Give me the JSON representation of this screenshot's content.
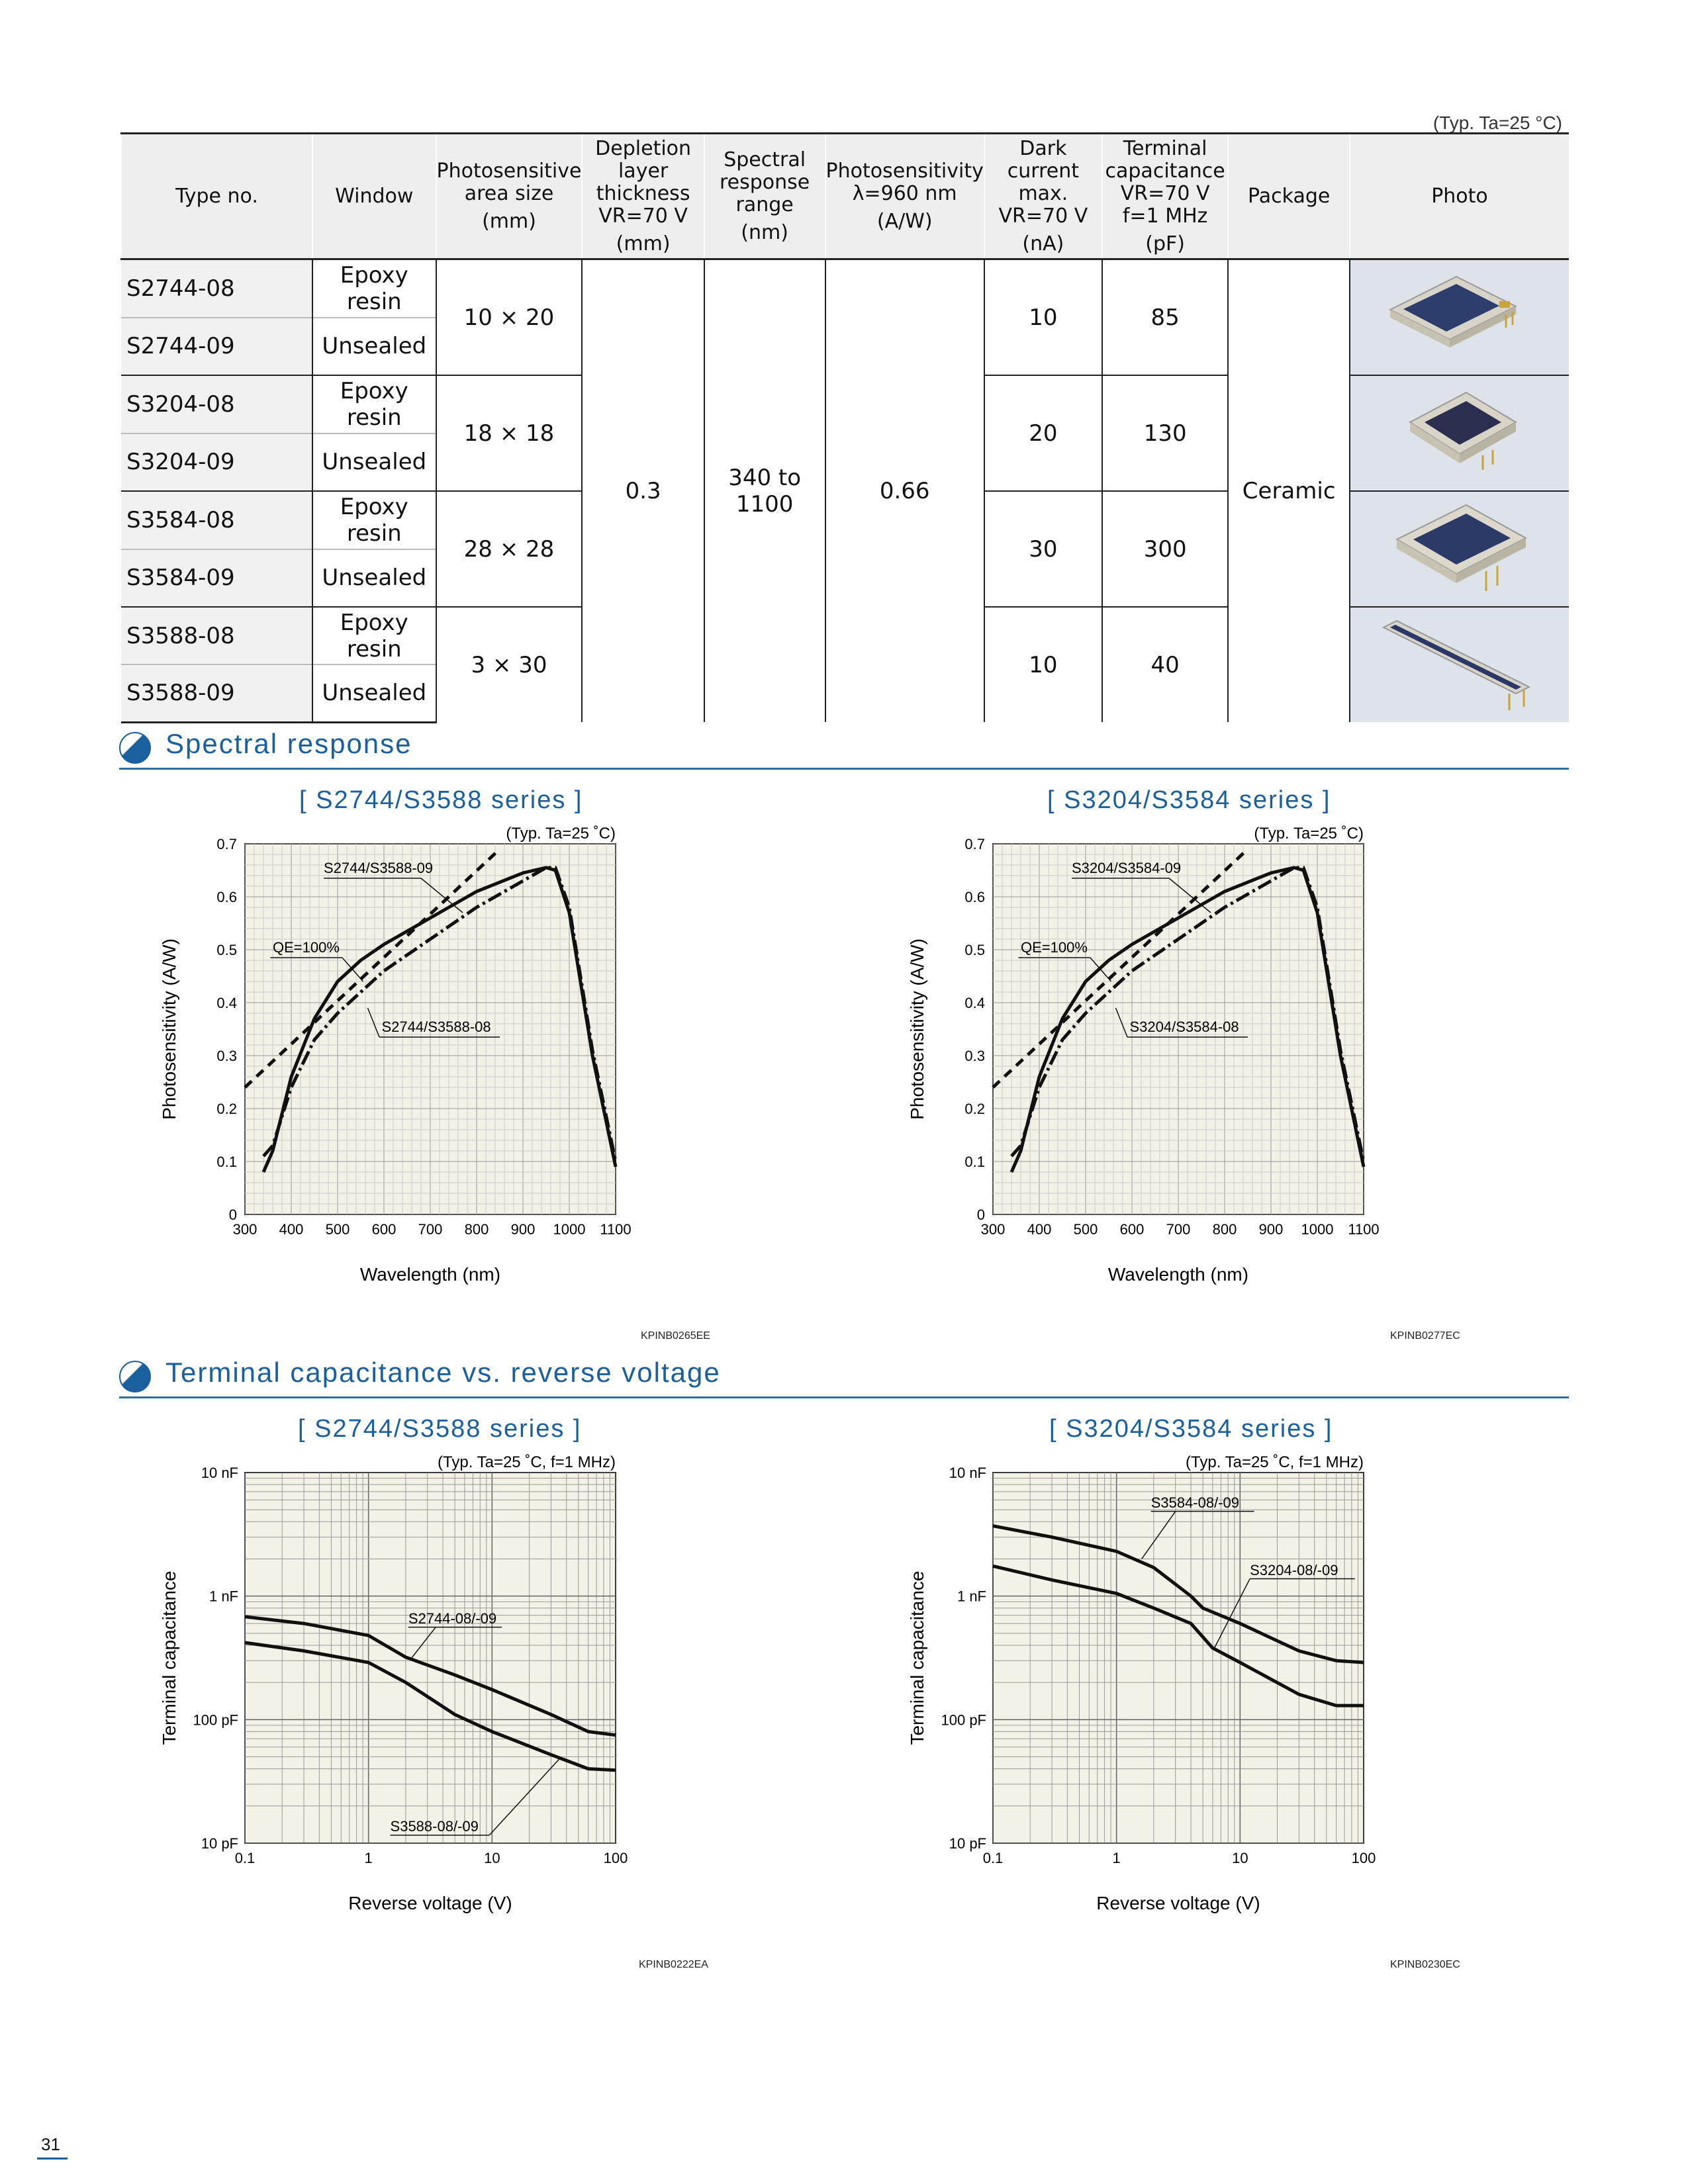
{
  "typ_note": "(Typ. Ta=25 °C)",
  "table": {
    "headers": {
      "type_no": "Type no.",
      "window": "Window",
      "area": "Photosensitive area size",
      "area_unit": "(mm)",
      "depletion": "Depletion layer thickness VR=70 V",
      "depletion_unit": "(mm)",
      "spectral": "Spectral response range",
      "spectral_unit": "(nm)",
      "sensitivity": "Photosensitivity λ=960 nm",
      "sensitivity_unit": "(A/W)",
      "dark": "Dark current max. VR=70 V",
      "dark_unit": "(nA)",
      "capacitance": "Terminal capacitance VR=70 V f=1 MHz",
      "capacitance_unit": "(pF)",
      "package": "Package",
      "photo": "Photo"
    },
    "rows": [
      {
        "type": "S2744-08",
        "window": "Epoxy resin"
      },
      {
        "type": "S2744-09",
        "window": "Unsealed"
      },
      {
        "type": "S3204-08",
        "window": "Epoxy resin"
      },
      {
        "type": "S3204-09",
        "window": "Unsealed"
      },
      {
        "type": "S3584-08",
        "window": "Epoxy resin"
      },
      {
        "type": "S3584-09",
        "window": "Unsealed"
      },
      {
        "type": "S3588-08",
        "window": "Epoxy resin"
      },
      {
        "type": "S3588-09",
        "window": "Unsealed"
      }
    ],
    "groups": [
      {
        "area": "10 × 20",
        "dark": "10",
        "cap": "85"
      },
      {
        "area": "18 × 18",
        "dark": "20",
        "cap": "130"
      },
      {
        "area": "28 × 28",
        "dark": "30",
        "cap": "300"
      },
      {
        "area": "3 × 30",
        "dark": "10",
        "cap": "40"
      }
    ],
    "shared": {
      "depletion": "0.3",
      "spectral": "340 to 1100",
      "sensitivity": "0.66",
      "package": "Ceramic"
    }
  },
  "sections": {
    "spectral": "Spectral response",
    "capacitance": "Terminal capacitance vs. reverse voltage"
  },
  "charts": {
    "sr1": {
      "title": "[ S2744/S3588 series ]",
      "typ": "(Typ. Ta=25 ˚C)",
      "ylabel": "Photosensitivity (A/W)",
      "xlabel": "Wavelength (nm)",
      "code": "KPINB0265EE",
      "labels": {
        "s09": "S2744/S3588-09",
        "qe": "QE=100%",
        "s08": "S2744/S3588-08"
      }
    },
    "sr2": {
      "title": "[ S3204/S3584 series ]",
      "typ": "(Typ. Ta=25 ˚C)",
      "ylabel": "Photosensitivity (A/W)",
      "xlabel": "Wavelength (nm)",
      "code": "KPINB0277EC",
      "labels": {
        "s09": "S3204/S3584-09",
        "qe": "QE=100%",
        "s08": "S3204/S3584-08"
      }
    },
    "tc1": {
      "title": "[ S2744/S3588 series ]",
      "typ": "(Typ. Ta=25 ˚C, f=1 MHz)",
      "ylabel": "Terminal capacitance",
      "xlabel": "Reverse voltage (V)",
      "code": "KPINB0222EA",
      "labels": {
        "a": "S2744-08/-09",
        "b": "S3588-08/-09"
      }
    },
    "tc2": {
      "title": "[ S3204/S3584 series ]",
      "typ": "(Typ. Ta=25 ˚C, f=1 MHz)",
      "ylabel": "Terminal capacitance",
      "xlabel": "Reverse voltage (V)",
      "code": "KPINB0230EC",
      "labels": {
        "a": "S3584-08/-09",
        "b": "S3204-08/-09"
      }
    }
  },
  "page_number": "31",
  "chart_data": [
    {
      "type": "line",
      "x_ticks": [
        "300",
        "400",
        "500",
        "600",
        "700",
        "800",
        "900",
        "1000",
        "1100"
      ],
      "y_ticks": [
        "0",
        "0.1",
        "0.2",
        "0.3",
        "0.4",
        "0.5",
        "0.6",
        "0.7"
      ],
      "xlim": [
        300,
        1100
      ],
      "ylim": [
        0,
        0.7
      ],
      "grid": true,
      "series": [
        {
          "name": "S2744/S3588-09",
          "x": [
            340,
            360,
            400,
            450,
            500,
            550,
            600,
            700,
            800,
            900,
            950,
            970,
            1000,
            1050,
            1100
          ],
          "y": [
            0.08,
            0.12,
            0.26,
            0.37,
            0.44,
            0.48,
            0.51,
            0.56,
            0.61,
            0.645,
            0.655,
            0.65,
            0.57,
            0.3,
            0.09
          ]
        },
        {
          "name": "S2744/S3588-08",
          "x": [
            340,
            360,
            400,
            450,
            500,
            550,
            600,
            700,
            800,
            900,
            950,
            970,
            1000,
            1050,
            1100
          ],
          "y": [
            0.11,
            0.13,
            0.24,
            0.33,
            0.38,
            0.42,
            0.46,
            0.52,
            0.58,
            0.63,
            0.655,
            0.655,
            0.58,
            0.31,
            0.1
          ]
        },
        {
          "name": "QE=100%",
          "x": [
            300,
            850
          ],
          "y": [
            0.24,
            0.69
          ]
        }
      ]
    },
    {
      "type": "line",
      "x_ticks": [
        "300",
        "400",
        "500",
        "600",
        "700",
        "800",
        "900",
        "1000",
        "1100"
      ],
      "y_ticks": [
        "0",
        "0.1",
        "0.2",
        "0.3",
        "0.4",
        "0.5",
        "0.6",
        "0.7"
      ],
      "xlim": [
        300,
        1100
      ],
      "ylim": [
        0,
        0.7
      ],
      "grid": true,
      "series": [
        {
          "name": "S3204/S3584-09",
          "x": [
            340,
            360,
            400,
            450,
            500,
            550,
            600,
            700,
            800,
            900,
            950,
            970,
            1000,
            1050,
            1100
          ],
          "y": [
            0.08,
            0.12,
            0.26,
            0.37,
            0.44,
            0.48,
            0.51,
            0.56,
            0.61,
            0.645,
            0.655,
            0.65,
            0.57,
            0.3,
            0.09
          ]
        },
        {
          "name": "S3204/S3584-08",
          "x": [
            340,
            360,
            400,
            450,
            500,
            550,
            600,
            700,
            800,
            900,
            950,
            970,
            1000,
            1050,
            1100
          ],
          "y": [
            0.11,
            0.13,
            0.24,
            0.33,
            0.38,
            0.42,
            0.46,
            0.52,
            0.58,
            0.63,
            0.655,
            0.655,
            0.58,
            0.31,
            0.1
          ]
        },
        {
          "name": "QE=100%",
          "x": [
            300,
            850
          ],
          "y": [
            0.24,
            0.69
          ]
        }
      ]
    },
    {
      "type": "line",
      "x_ticks": [
        "0.1",
        "1",
        "10",
        "100"
      ],
      "y_ticks": [
        "10 pF",
        "100 pF",
        "1 nF",
        "10 nF"
      ],
      "xlim": [
        0.1,
        100
      ],
      "ylim": [
        10,
        10000
      ],
      "log_scale": true,
      "grid": true,
      "series": [
        {
          "name": "S2744-08/-09",
          "x": [
            0.1,
            0.3,
            1,
            2,
            5,
            10,
            30,
            60,
            100
          ],
          "y": [
            680,
            600,
            480,
            320,
            230,
            175,
            110,
            80,
            75
          ]
        },
        {
          "name": "S3588-08/-09",
          "x": [
            0.1,
            0.3,
            1,
            2,
            5,
            10,
            30,
            60,
            100
          ],
          "y": [
            420,
            360,
            290,
            200,
            110,
            80,
            52,
            40,
            39
          ]
        }
      ]
    },
    {
      "type": "line",
      "x_ticks": [
        "0.1",
        "1",
        "10",
        "100"
      ],
      "y_ticks": [
        "10 pF",
        "100 pF",
        "1 nF",
        "10 nF"
      ],
      "xlim": [
        0.1,
        100
      ],
      "ylim": [
        10,
        10000
      ],
      "log_scale": true,
      "grid": true,
      "series": [
        {
          "name": "S3584-08/-09",
          "x": [
            0.1,
            0.3,
            1,
            2,
            4,
            5,
            10,
            30,
            60,
            100
          ],
          "y": [
            3700,
            3000,
            2300,
            1700,
            1000,
            800,
            600,
            360,
            300,
            290
          ]
        },
        {
          "name": "S3204-08/-09",
          "x": [
            0.1,
            0.3,
            1,
            2,
            4,
            6,
            10,
            30,
            60,
            100
          ],
          "y": [
            1750,
            1350,
            1050,
            800,
            600,
            380,
            290,
            160,
            130,
            130
          ]
        }
      ]
    }
  ]
}
